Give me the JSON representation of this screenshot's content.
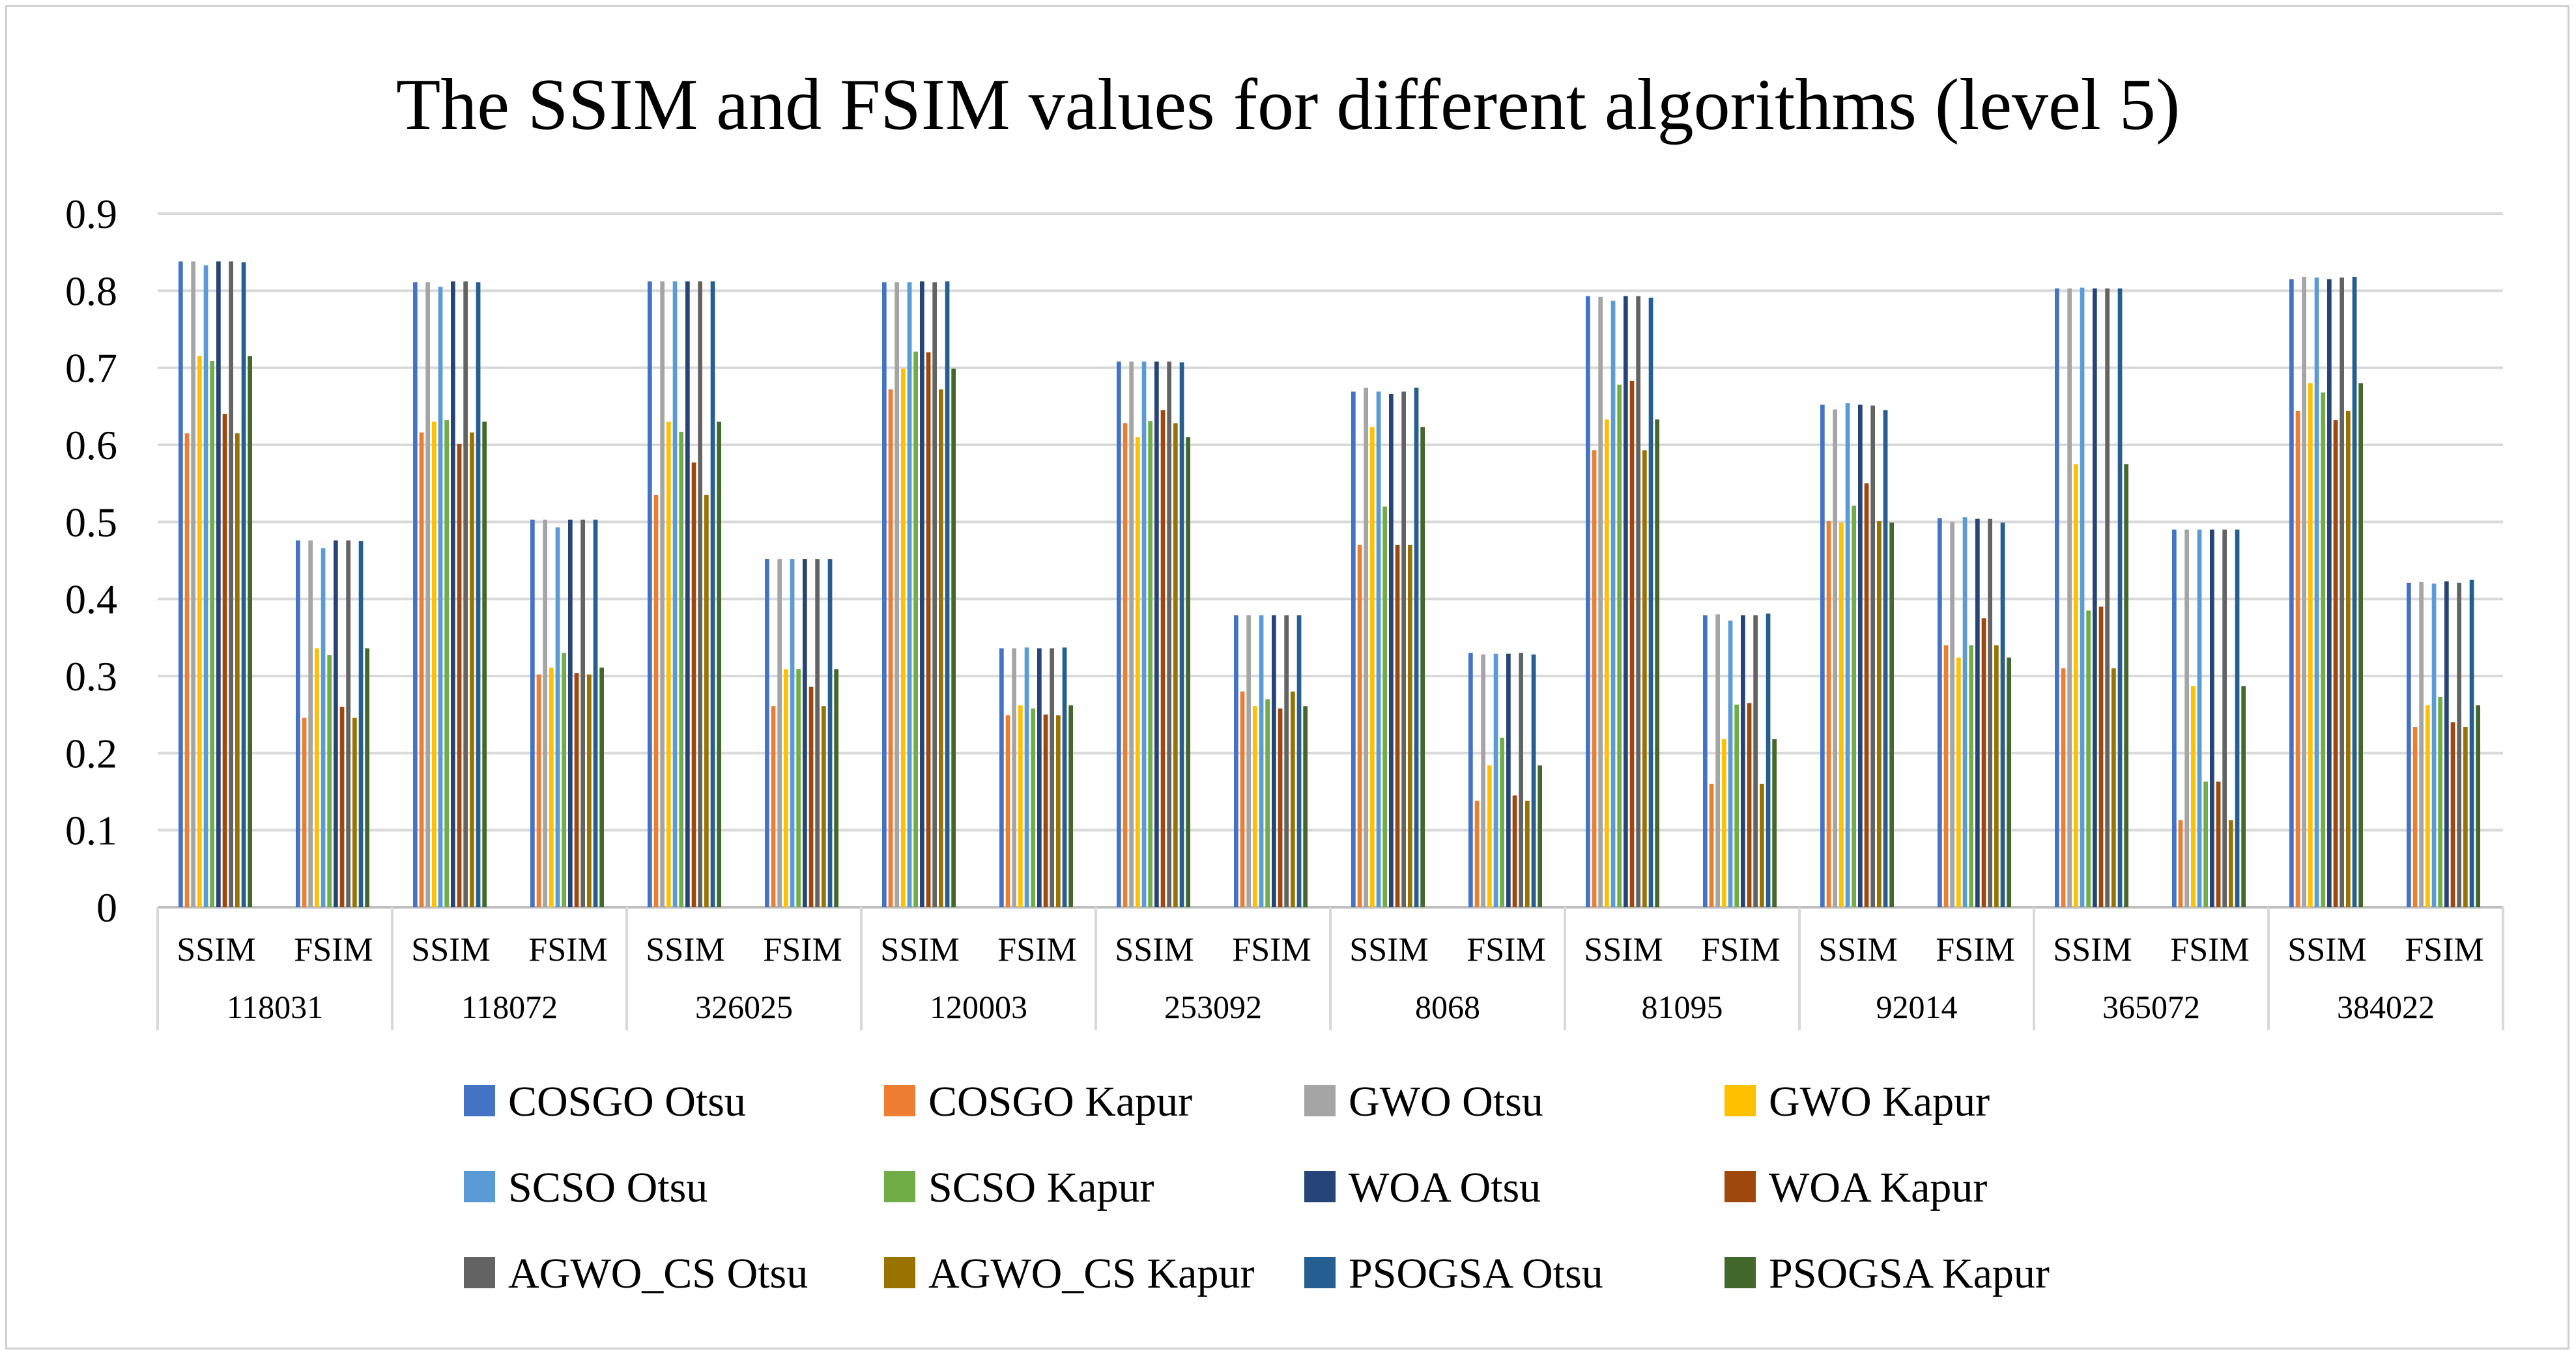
{
  "chart_data": {
    "type": "bar",
    "title": "The SSIM and FSIM values for different algorithms (level 5)",
    "xlabel": "",
    "ylabel": "",
    "ylim": [
      0,
      0.9
    ],
    "y_ticks": [
      "0",
      "0.1",
      "0.2",
      "0.3",
      "0.4",
      "0.5",
      "0.6",
      "0.7",
      "0.8",
      "0.9"
    ],
    "grid": "horizontal",
    "legend_position": "bottom",
    "groups": [
      "118031",
      "118072",
      "326025",
      "120003",
      "253092",
      "8068",
      "81095",
      "92014",
      "365072",
      "384022"
    ],
    "metrics": [
      "SSIM",
      "FSIM"
    ],
    "categories": [
      "118031 SSIM",
      "118031 FSIM",
      "118072 SSIM",
      "118072 FSIM",
      "326025 SSIM",
      "326025 FSIM",
      "120003 SSIM",
      "120003 FSIM",
      "253092 SSIM",
      "253092 FSIM",
      "8068 SSIM",
      "8068 FSIM",
      "81095 SSIM",
      "81095 FSIM",
      "92014 SSIM",
      "92014 FSIM",
      "365072 SSIM",
      "365072 FSIM",
      "384022 SSIM",
      "384022 FSIM"
    ],
    "series": [
      {
        "name": "COSGO Otsu",
        "color": "#4472C4",
        "values": [
          0.838,
          0.476,
          0.811,
          0.503,
          0.812,
          0.452,
          0.811,
          0.336,
          0.708,
          0.379,
          0.669,
          0.33,
          0.793,
          0.379,
          0.652,
          0.505,
          0.803,
          0.49,
          0.815,
          0.421
        ]
      },
      {
        "name": "COSGO Kapur",
        "color": "#ED7D31",
        "values": [
          0.615,
          0.246,
          0.616,
          0.302,
          0.535,
          0.261,
          0.672,
          0.249,
          0.628,
          0.28,
          0.47,
          0.138,
          0.593,
          0.16,
          0.501,
          0.34,
          0.31,
          0.113,
          0.644,
          0.234
        ]
      },
      {
        "name": "GWO Otsu",
        "color": "#A5A5A5",
        "values": [
          0.838,
          0.476,
          0.811,
          0.503,
          0.812,
          0.452,
          0.811,
          0.336,
          0.708,
          0.379,
          0.674,
          0.328,
          0.792,
          0.38,
          0.646,
          0.5,
          0.803,
          0.49,
          0.818,
          0.422
        ]
      },
      {
        "name": "GWO Kapur",
        "color": "#FFC000",
        "values": [
          0.715,
          0.336,
          0.63,
          0.311,
          0.63,
          0.309,
          0.699,
          0.262,
          0.61,
          0.261,
          0.623,
          0.184,
          0.633,
          0.218,
          0.499,
          0.324,
          0.575,
          0.287,
          0.68,
          0.262
        ]
      },
      {
        "name": "SCSO Otsu",
        "color": "#5B9BD5",
        "values": [
          0.833,
          0.466,
          0.805,
          0.493,
          0.812,
          0.452,
          0.811,
          0.337,
          0.708,
          0.379,
          0.669,
          0.329,
          0.787,
          0.372,
          0.654,
          0.506,
          0.804,
          0.49,
          0.817,
          0.42
        ]
      },
      {
        "name": "SCSO Kapur",
        "color": "#70AD47",
        "values": [
          0.709,
          0.327,
          0.632,
          0.33,
          0.617,
          0.309,
          0.721,
          0.258,
          0.631,
          0.27,
          0.52,
          0.22,
          0.678,
          0.263,
          0.521,
          0.34,
          0.385,
          0.163,
          0.668,
          0.273
        ]
      },
      {
        "name": "WOA Otsu",
        "color": "#264478",
        "values": [
          0.838,
          0.476,
          0.812,
          0.503,
          0.812,
          0.452,
          0.812,
          0.336,
          0.708,
          0.379,
          0.666,
          0.329,
          0.793,
          0.379,
          0.652,
          0.504,
          0.803,
          0.49,
          0.815,
          0.423
        ]
      },
      {
        "name": "WOA Kapur",
        "color": "#9E480E",
        "values": [
          0.64,
          0.26,
          0.601,
          0.304,
          0.577,
          0.286,
          0.72,
          0.25,
          0.645,
          0.258,
          0.47,
          0.145,
          0.683,
          0.265,
          0.55,
          0.375,
          0.39,
          0.163,
          0.632,
          0.24
        ]
      },
      {
        "name": "AGWO_CS Otsu",
        "color": "#636363",
        "values": [
          0.838,
          0.476,
          0.812,
          0.503,
          0.812,
          0.452,
          0.811,
          0.336,
          0.708,
          0.379,
          0.669,
          0.33,
          0.793,
          0.379,
          0.651,
          0.504,
          0.803,
          0.49,
          0.817,
          0.421
        ]
      },
      {
        "name": "AGWO_CS Kapur",
        "color": "#997300",
        "values": [
          0.615,
          0.246,
          0.616,
          0.302,
          0.535,
          0.261,
          0.672,
          0.249,
          0.628,
          0.28,
          0.47,
          0.138,
          0.593,
          0.16,
          0.501,
          0.34,
          0.31,
          0.113,
          0.644,
          0.234
        ]
      },
      {
        "name": "PSOGSA Otsu",
        "color": "#255E91",
        "values": [
          0.837,
          0.475,
          0.811,
          0.503,
          0.812,
          0.452,
          0.812,
          0.337,
          0.707,
          0.379,
          0.674,
          0.328,
          0.791,
          0.381,
          0.645,
          0.499,
          0.803,
          0.49,
          0.818,
          0.425
        ]
      },
      {
        "name": "PSOGSA Kapur",
        "color": "#43682B",
        "values": [
          0.715,
          0.336,
          0.63,
          0.311,
          0.63,
          0.309,
          0.699,
          0.262,
          0.61,
          0.261,
          0.623,
          0.184,
          0.633,
          0.218,
          0.499,
          0.324,
          0.575,
          0.287,
          0.68,
          0.262
        ]
      }
    ]
  }
}
